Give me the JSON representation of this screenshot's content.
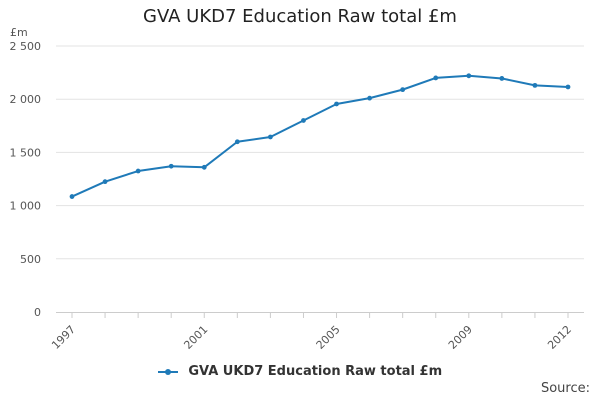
{
  "chart_data": {
    "type": "line",
    "title": "GVA UKD7 Education Raw total £m",
    "ylabel": "£m",
    "xlabel": "",
    "x": [
      1997,
      1998,
      1999,
      2000,
      2001,
      2002,
      2003,
      2004,
      2005,
      2006,
      2007,
      2008,
      2009,
      2010,
      2011,
      2012
    ],
    "x_tick_labels": [
      "1997",
      "2001",
      "2005",
      "2009",
      "2012"
    ],
    "y_tick_labels": [
      "0",
      "500",
      "1 000",
      "1 500",
      "2 000",
      "2 500"
    ],
    "ylim": [
      0,
      2500
    ],
    "grid": true,
    "legend_position": "bottom",
    "series": [
      {
        "name": "GVA UKD7 Education Raw total £m",
        "color": "#1f7ab8",
        "values": [
          1085,
          1225,
          1325,
          1370,
          1360,
          1600,
          1645,
          1800,
          1955,
          2010,
          2090,
          2200,
          2220,
          2195,
          2130,
          2115
        ]
      }
    ]
  },
  "footer": {
    "source_label": "Source:"
  }
}
